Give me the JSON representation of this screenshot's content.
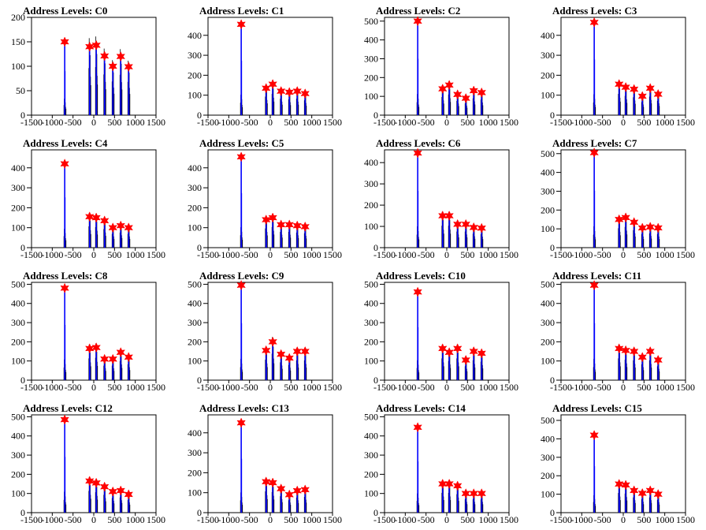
{
  "chart_data": {
    "type": "bar",
    "xlabel": "",
    "ylabel": "",
    "xlim": [
      -1500,
      1500
    ],
    "x_ticks": [
      -1500,
      -1000,
      -500,
      0,
      500,
      1000,
      1500
    ],
    "x_tick_labels": [
      "-1500",
      "-1000",
      "-500",
      "0",
      "500",
      "1000",
      "1500"
    ],
    "colors": {
      "bars": "#0000ff",
      "secondary_bars": "#000000",
      "markers": "#ff0000",
      "frame": "#000000"
    },
    "grid": false,
    "panels": [
      {
        "title": "Address Levels: C0",
        "ylim": [
          0,
          200
        ],
        "y_ticks": [
          50,
          100,
          150,
          200
        ],
        "y_tick_labels": [
          "50",
          "100",
          "150",
          "200"
        ],
        "peaks": [
          {
            "x": -700,
            "y": 150
          },
          {
            "x": -100,
            "y": 140
          },
          {
            "x": 60,
            "y": 143
          },
          {
            "x": 260,
            "y": 121
          },
          {
            "x": 460,
            "y": 100
          },
          {
            "x": 650,
            "y": 120
          },
          {
            "x": 840,
            "y": 99
          }
        ]
      },
      {
        "title": "Address Levels: C1",
        "ylim": [
          0,
          490
        ],
        "y_ticks": [
          100,
          200,
          300,
          400
        ],
        "y_tick_labels": [
          "100",
          "200",
          "300",
          "400"
        ],
        "peaks": [
          {
            "x": -700,
            "y": 455
          },
          {
            "x": -100,
            "y": 135
          },
          {
            "x": 60,
            "y": 155
          },
          {
            "x": 260,
            "y": 120
          },
          {
            "x": 460,
            "y": 115
          },
          {
            "x": 650,
            "y": 120
          },
          {
            "x": 840,
            "y": 108
          }
        ]
      },
      {
        "title": "Address Levels: C2",
        "ylim": [
          0,
          520
        ],
        "y_ticks": [
          100,
          200,
          300,
          400,
          500
        ],
        "y_tick_labels": [
          "100",
          "200",
          "300",
          "400",
          "500"
        ],
        "peaks": [
          {
            "x": -700,
            "y": 500
          },
          {
            "x": -100,
            "y": 140
          },
          {
            "x": 60,
            "y": 160
          },
          {
            "x": 260,
            "y": 110
          },
          {
            "x": 460,
            "y": 90
          },
          {
            "x": 650,
            "y": 130
          },
          {
            "x": 840,
            "y": 120
          }
        ]
      },
      {
        "title": "Address Levels: C3",
        "ylim": [
          0,
          490
        ],
        "y_ticks": [
          100,
          200,
          300,
          400
        ],
        "y_tick_labels": [
          "100",
          "200",
          "300",
          "400"
        ],
        "peaks": [
          {
            "x": -700,
            "y": 465
          },
          {
            "x": -100,
            "y": 155
          },
          {
            "x": 60,
            "y": 140
          },
          {
            "x": 260,
            "y": 130
          },
          {
            "x": 460,
            "y": 95
          },
          {
            "x": 650,
            "y": 135
          },
          {
            "x": 840,
            "y": 105
          }
        ]
      },
      {
        "title": "Address Levels: C4",
        "ylim": [
          0,
          490
        ],
        "y_ticks": [
          100,
          200,
          300,
          400
        ],
        "y_tick_labels": [
          "100",
          "200",
          "300",
          "400"
        ],
        "peaks": [
          {
            "x": -700,
            "y": 420
          },
          {
            "x": -100,
            "y": 155
          },
          {
            "x": 60,
            "y": 150
          },
          {
            "x": 260,
            "y": 135
          },
          {
            "x": 460,
            "y": 100
          },
          {
            "x": 650,
            "y": 110
          },
          {
            "x": 840,
            "y": 100
          }
        ]
      },
      {
        "title": "Address Levels: C5",
        "ylim": [
          0,
          490
        ],
        "y_ticks": [
          100,
          200,
          300,
          400
        ],
        "y_tick_labels": [
          "100",
          "200",
          "300",
          "400"
        ],
        "peaks": [
          {
            "x": -700,
            "y": 455
          },
          {
            "x": -100,
            "y": 140
          },
          {
            "x": 60,
            "y": 150
          },
          {
            "x": 260,
            "y": 115
          },
          {
            "x": 460,
            "y": 115
          },
          {
            "x": 650,
            "y": 110
          },
          {
            "x": 840,
            "y": 105
          }
        ]
      },
      {
        "title": "Address Levels: C6",
        "ylim": [
          0,
          460
        ],
        "y_ticks": [
          100,
          200,
          300,
          400
        ],
        "y_tick_labels": [
          "100",
          "200",
          "300",
          "400"
        ],
        "peaks": [
          {
            "x": -700,
            "y": 445
          },
          {
            "x": -100,
            "y": 150
          },
          {
            "x": 60,
            "y": 150
          },
          {
            "x": 260,
            "y": 110
          },
          {
            "x": 460,
            "y": 110
          },
          {
            "x": 650,
            "y": 95
          },
          {
            "x": 840,
            "y": 92
          }
        ]
      },
      {
        "title": "Address Levels: C7",
        "ylim": [
          0,
          520
        ],
        "y_ticks": [
          100,
          200,
          300,
          400,
          500
        ],
        "y_tick_labels": [
          "100",
          "200",
          "300",
          "400",
          "500"
        ],
        "peaks": [
          {
            "x": -700,
            "y": 505
          },
          {
            "x": -100,
            "y": 150
          },
          {
            "x": 60,
            "y": 160
          },
          {
            "x": 260,
            "y": 135
          },
          {
            "x": 460,
            "y": 105
          },
          {
            "x": 650,
            "y": 110
          },
          {
            "x": 840,
            "y": 105
          }
        ]
      },
      {
        "title": "Address Levels: C8",
        "ylim": [
          0,
          510
        ],
        "y_ticks": [
          100,
          200,
          300,
          400,
          500
        ],
        "y_tick_labels": [
          "100",
          "200",
          "300",
          "400",
          "500"
        ],
        "peaks": [
          {
            "x": -700,
            "y": 480
          },
          {
            "x": -100,
            "y": 165
          },
          {
            "x": 60,
            "y": 170
          },
          {
            "x": 260,
            "y": 110
          },
          {
            "x": 460,
            "y": 110
          },
          {
            "x": 650,
            "y": 145
          },
          {
            "x": 840,
            "y": 120
          }
        ]
      },
      {
        "title": "Address Levels: C9",
        "ylim": [
          0,
          510
        ],
        "y_ticks": [
          100,
          200,
          300,
          400,
          500
        ],
        "y_tick_labels": [
          "100",
          "200",
          "300",
          "400",
          "500"
        ],
        "peaks": [
          {
            "x": -700,
            "y": 495
          },
          {
            "x": -100,
            "y": 155
          },
          {
            "x": 60,
            "y": 200
          },
          {
            "x": 260,
            "y": 135
          },
          {
            "x": 460,
            "y": 115
          },
          {
            "x": 650,
            "y": 150
          },
          {
            "x": 840,
            "y": 150
          }
        ]
      },
      {
        "title": "Address Levels: C10",
        "ylim": [
          0,
          510
        ],
        "y_ticks": [
          100,
          200,
          300,
          400,
          500
        ],
        "y_tick_labels": [
          "100",
          "200",
          "300",
          "400",
          "500"
        ],
        "peaks": [
          {
            "x": -700,
            "y": 460
          },
          {
            "x": -100,
            "y": 165
          },
          {
            "x": 60,
            "y": 145
          },
          {
            "x": 260,
            "y": 165
          },
          {
            "x": 460,
            "y": 105
          },
          {
            "x": 650,
            "y": 150
          },
          {
            "x": 840,
            "y": 140
          }
        ]
      },
      {
        "title": "Address Levels: C11",
        "ylim": [
          0,
          510
        ],
        "y_ticks": [
          100,
          200,
          300,
          400,
          500
        ],
        "y_tick_labels": [
          "100",
          "200",
          "300",
          "400",
          "500"
        ],
        "peaks": [
          {
            "x": -700,
            "y": 495
          },
          {
            "x": -100,
            "y": 165
          },
          {
            "x": 60,
            "y": 155
          },
          {
            "x": 260,
            "y": 150
          },
          {
            "x": 460,
            "y": 120
          },
          {
            "x": 650,
            "y": 150
          },
          {
            "x": 840,
            "y": 105
          }
        ]
      },
      {
        "title": "Address Levels: C12",
        "ylim": [
          0,
          510
        ],
        "y_ticks": [
          100,
          200,
          300,
          400,
          500
        ],
        "y_tick_labels": [
          "100",
          "200",
          "300",
          "400",
          "500"
        ],
        "peaks": [
          {
            "x": -700,
            "y": 485
          },
          {
            "x": -100,
            "y": 165
          },
          {
            "x": 60,
            "y": 155
          },
          {
            "x": 260,
            "y": 135
          },
          {
            "x": 460,
            "y": 110
          },
          {
            "x": 650,
            "y": 115
          },
          {
            "x": 840,
            "y": 95
          }
        ]
      },
      {
        "title": "Address Levels: C13",
        "ylim": [
          0,
          490
        ],
        "y_ticks": [
          100,
          200,
          300,
          400
        ],
        "y_tick_labels": [
          "100",
          "200",
          "300",
          "400"
        ],
        "peaks": [
          {
            "x": -700,
            "y": 450
          },
          {
            "x": -100,
            "y": 155
          },
          {
            "x": 60,
            "y": 150
          },
          {
            "x": 260,
            "y": 120
          },
          {
            "x": 460,
            "y": 90
          },
          {
            "x": 650,
            "y": 110
          },
          {
            "x": 840,
            "y": 115
          }
        ]
      },
      {
        "title": "Address Levels: C14",
        "ylim": [
          0,
          510
        ],
        "y_ticks": [
          100,
          200,
          300,
          400,
          500
        ],
        "y_tick_labels": [
          "100",
          "200",
          "300",
          "400",
          "500"
        ],
        "peaks": [
          {
            "x": -700,
            "y": 445
          },
          {
            "x": -100,
            "y": 150
          },
          {
            "x": 60,
            "y": 150
          },
          {
            "x": 260,
            "y": 140
          },
          {
            "x": 460,
            "y": 100
          },
          {
            "x": 650,
            "y": 100
          },
          {
            "x": 840,
            "y": 100
          }
        ]
      },
      {
        "title": "Address Levels: C15",
        "ylim": [
          0,
          530
        ],
        "y_ticks": [
          100,
          200,
          300,
          400,
          500
        ],
        "y_tick_labels": [
          "100",
          "200",
          "300",
          "400",
          "500"
        ],
        "peaks": [
          {
            "x": -700,
            "y": 420
          },
          {
            "x": -100,
            "y": 155
          },
          {
            "x": 60,
            "y": 150
          },
          {
            "x": 260,
            "y": 120
          },
          {
            "x": 460,
            "y": 105
          },
          {
            "x": 650,
            "y": 120
          },
          {
            "x": 840,
            "y": 100
          }
        ]
      }
    ]
  }
}
